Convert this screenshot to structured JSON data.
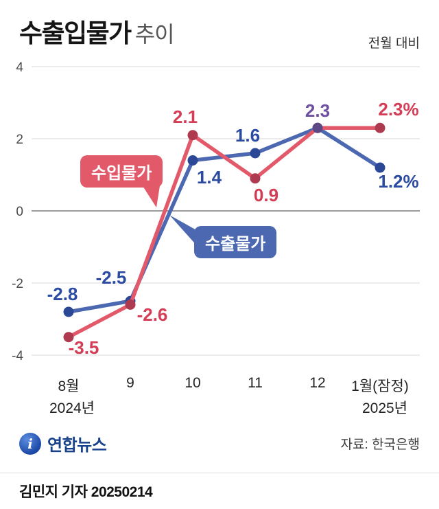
{
  "header": {
    "title_strong": "수출입물가",
    "title_light": "추이",
    "note": "전월 대비"
  },
  "chart_data": {
    "type": "line",
    "title": "수출입물가 추이",
    "subtitle": "전월 대비",
    "categories": [
      "8월",
      "9",
      "10",
      "11",
      "12",
      "1월(잠정)"
    ],
    "x_year_labels": {
      "start": "2024년",
      "end": "2025년"
    },
    "ylim": [
      -4,
      4
    ],
    "y_ticks": [
      4,
      2,
      0,
      -2,
      -4
    ],
    "grid": "horizontal",
    "legend_position": "inline-callouts",
    "series": [
      {
        "name": "수입물가",
        "key": "import",
        "values": [
          -3.5,
          -2.6,
          2.1,
          0.9,
          2.3,
          2.3
        ]
      },
      {
        "name": "수출물가",
        "key": "export",
        "values": [
          -2.8,
          -2.5,
          1.4,
          1.6,
          2.3,
          1.2
        ]
      }
    ],
    "value_labels": [
      {
        "text": "-2.8",
        "color": "export"
      },
      {
        "text": "-2.5",
        "color": "export"
      },
      {
        "text": "1.4",
        "color": "export"
      },
      {
        "text": "1.6",
        "color": "export"
      },
      {
        "text": "2.3",
        "color": "shared"
      },
      {
        "text": "1.2%",
        "color": "export"
      },
      {
        "text": "-3.5",
        "color": "import"
      },
      {
        "text": "-2.6",
        "color": "import"
      },
      {
        "text": "2.1",
        "color": "import"
      },
      {
        "text": "0.9",
        "color": "import"
      },
      {
        "text": "2.3%",
        "color": "import"
      }
    ],
    "colors": {
      "import_line": "#e2596a",
      "import_marker": "#ae3a50",
      "import_text": "#d43d55",
      "export_line": "#4b68b1",
      "export_marker": "#2a4896",
      "export_text": "#2b4ba3",
      "shared_text": "#6f4fa0",
      "shared_marker": "#5b4884",
      "grid": "#d9d9d9",
      "zero_line": "#9b9b9b"
    }
  },
  "callouts": {
    "import_label": "수입물가",
    "export_label": "수출물가"
  },
  "footer": {
    "agency": "연합뉴스",
    "source": "자료: 한국은행",
    "byline": "김민지 기자 20250214"
  }
}
